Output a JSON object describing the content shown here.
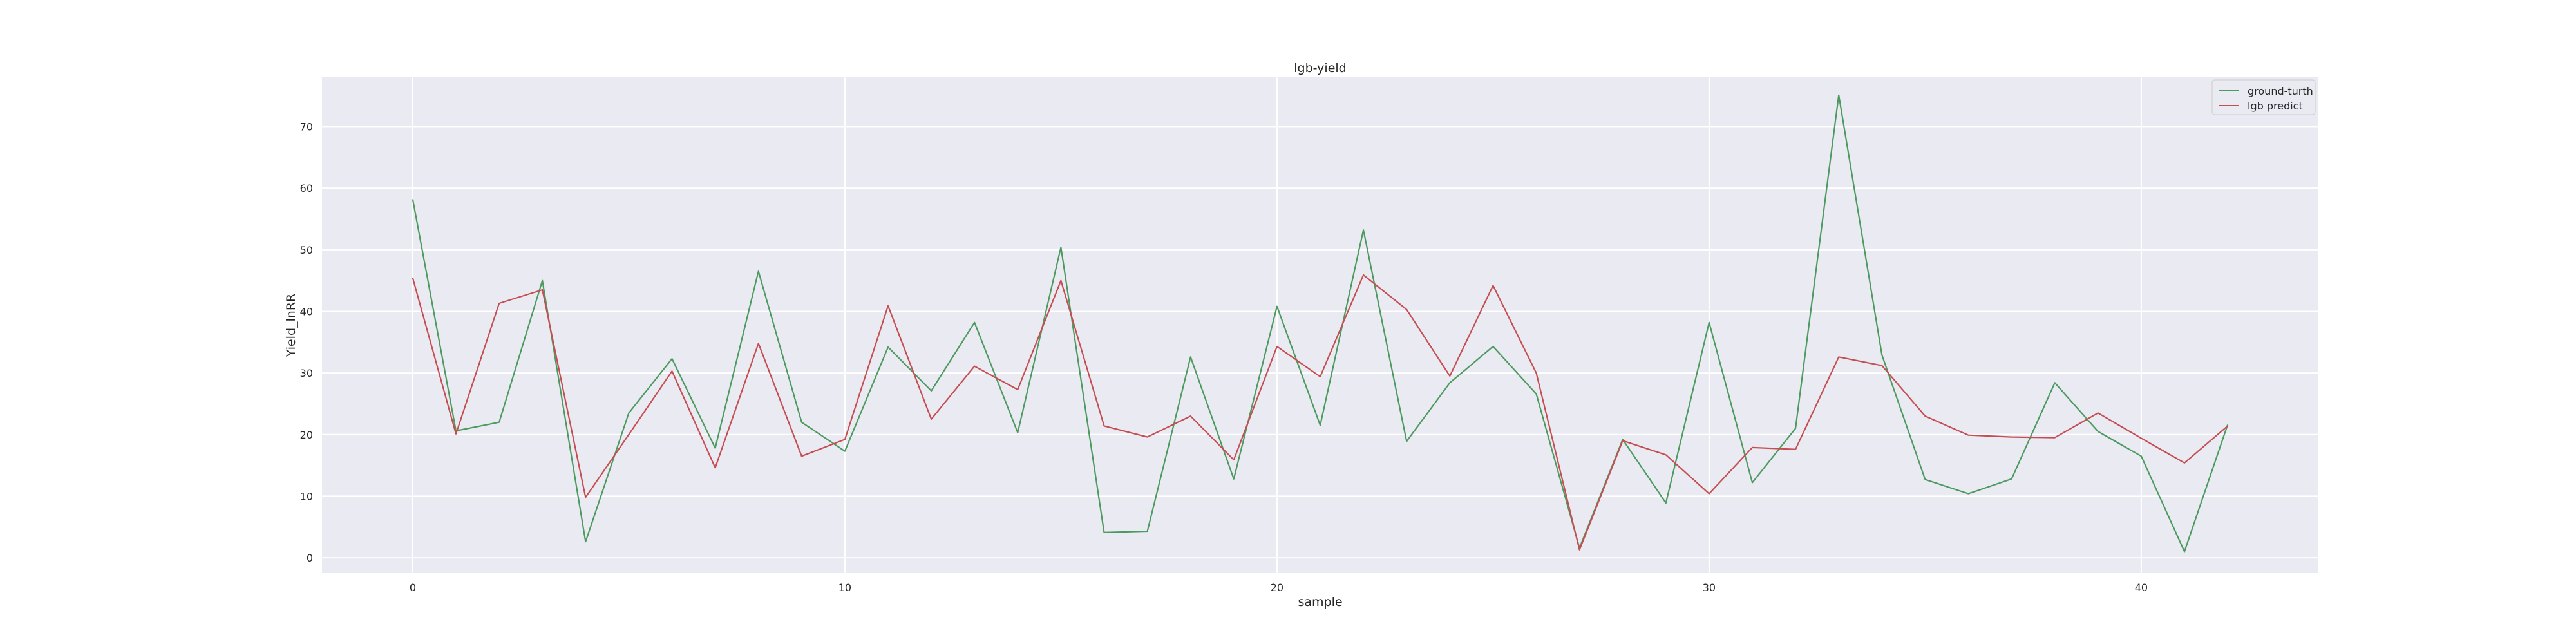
{
  "chart_data": {
    "type": "line",
    "title": "lgb-yield",
    "xlabel": "sample",
    "ylabel": "Yield_lnRR",
    "xlim": [
      -2.1,
      44.1
    ],
    "ylim": [
      -2.5,
      78
    ],
    "xticks": [
      0,
      10,
      20,
      30,
      40
    ],
    "yticks": [
      0,
      10,
      20,
      30,
      40,
      50,
      60,
      70
    ],
    "grid": true,
    "legend_position": "upper-right",
    "x": [
      0,
      1,
      2,
      3,
      4,
      5,
      6,
      7,
      8,
      9,
      10,
      11,
      12,
      13,
      14,
      15,
      16,
      17,
      18,
      19,
      20,
      21,
      22,
      23,
      24,
      25,
      26,
      27,
      28,
      29,
      30,
      31,
      32,
      33,
      34,
      35,
      36,
      37,
      38,
      39,
      40,
      41,
      42
    ],
    "series": [
      {
        "name": "ground-turth",
        "color": "#4c9a5f",
        "values": [
          58.2,
          20.6,
          22.0,
          45.0,
          2.6,
          23.5,
          32.3,
          17.8,
          46.5,
          22.0,
          17.3,
          34.2,
          27.1,
          38.2,
          20.3,
          50.4,
          4.1,
          4.3,
          32.6,
          12.8,
          40.8,
          21.5,
          53.2,
          18.9,
          28.4,
          34.3,
          26.6,
          1.6,
          19.2,
          8.9,
          38.2,
          12.2,
          21.0,
          75.1,
          32.9,
          12.7,
          10.4,
          12.8,
          28.4,
          20.5,
          16.5,
          1.0,
          21.6
        ]
      },
      {
        "name": "lgb predict",
        "color": "#c44e52",
        "values": [
          45.4,
          20.1,
          41.3,
          43.5,
          9.8,
          20.0,
          30.3,
          14.6,
          34.8,
          16.5,
          19.2,
          40.9,
          22.5,
          31.1,
          27.3,
          45.0,
          21.4,
          19.6,
          23.0,
          15.9,
          34.3,
          29.4,
          45.9,
          40.3,
          29.5,
          44.2,
          30.0,
          1.3,
          19.0,
          16.7,
          10.4,
          17.9,
          17.6,
          32.6,
          31.2,
          23.0,
          19.9,
          19.6,
          19.5,
          23.5,
          19.4,
          15.4,
          21.4
        ]
      }
    ]
  }
}
